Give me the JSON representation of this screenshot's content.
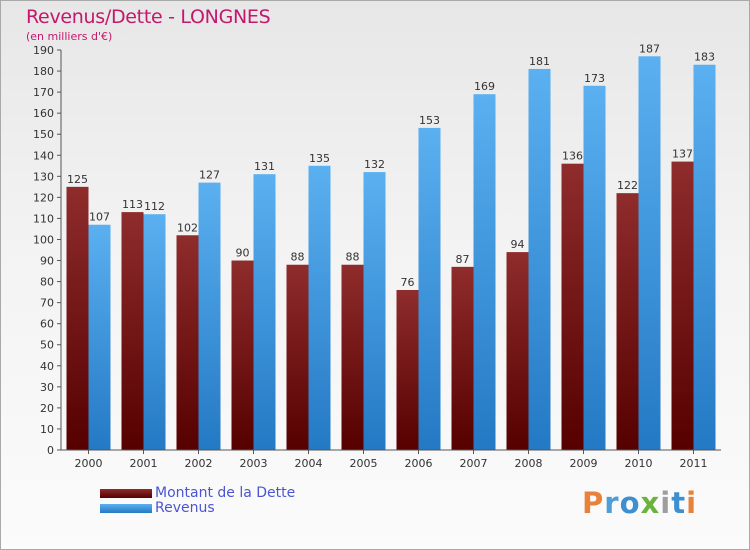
{
  "header": {
    "title": "Revenus/Dette - LONGNES",
    "subtitle": "(en milliers d'€)"
  },
  "logo": {
    "letters": [
      "P",
      "r",
      "o",
      "x",
      "i",
      "t",
      "i"
    ],
    "colors": [
      "#e8823a",
      "#4f9ed6",
      "#3d8fd0",
      "#6bb33f",
      "#9e9e9e",
      "#3d8fd0",
      "#e8823a"
    ]
  },
  "chart_data": {
    "type": "bar",
    "title": "Revenus/Dette - LONGNES",
    "subtitle": "(en milliers d'€)",
    "xlabel": "",
    "ylabel": "",
    "categories": [
      "2000",
      "2001",
      "2002",
      "2003",
      "2004",
      "2005",
      "2006",
      "2007",
      "2008",
      "2009",
      "2010",
      "2011"
    ],
    "series": [
      {
        "name": "Montant de la Dette",
        "values": [
          125,
          113,
          102,
          90,
          88,
          88,
          76,
          87,
          94,
          136,
          122,
          137
        ],
        "color": "#7a1a1a"
      },
      {
        "name": "Revenus",
        "values": [
          107,
          112,
          127,
          131,
          135,
          132,
          153,
          169,
          181,
          173,
          187,
          183
        ],
        "color": "#3c9be6"
      }
    ],
    "ylim": [
      0,
      190
    ],
    "ytick_step": 10,
    "grid": false,
    "data_labels": true,
    "legend_position": "bottom-left"
  }
}
